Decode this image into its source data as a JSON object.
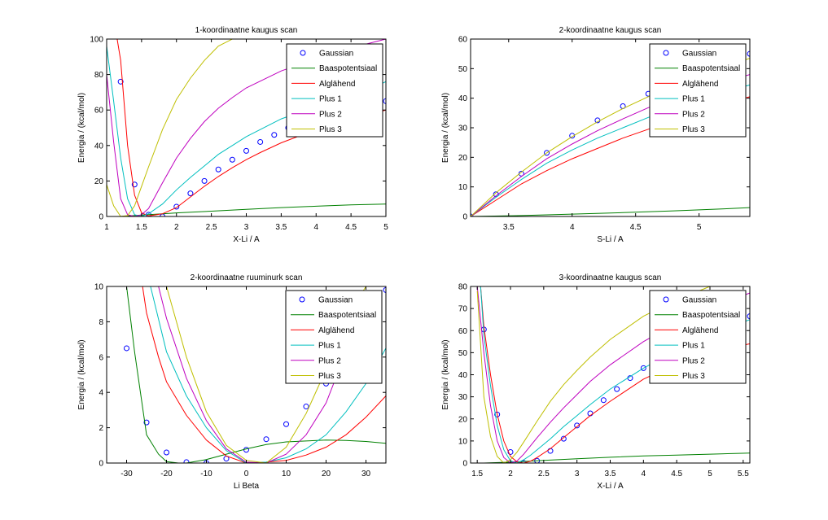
{
  "colors": {
    "Gaussian": "#0000ff",
    "Baaspotentsiaal": "#008000",
    "Alglähend": "#ff0000",
    "Plus 1": "#00bfbf",
    "Plus 2": "#bf00bf",
    "Plus 3": "#bfbf00"
  },
  "chart_data": [
    {
      "type": "line",
      "title": "1-koordinaatne kaugus scan",
      "xlabel": "X-Li / A",
      "ylabel": "Energia / (kcal/mol)",
      "xlim": [
        1,
        5
      ],
      "ylim": [
        0,
        100
      ],
      "xticks": [
        1,
        1.5,
        2,
        2.5,
        3,
        3.5,
        4,
        4.5,
        5
      ],
      "yticks": [
        0,
        20,
        40,
        60,
        80,
        100
      ],
      "legend": [
        "Gaussian",
        "Baaspotentsiaal",
        "Alglähend",
        "Plus 1",
        "Plus 2",
        "Plus 3"
      ],
      "legend_position": "top-right",
      "series": [
        {
          "name": "Gaussian",
          "marker": "circle",
          "x": [
            1.2,
            1.4,
            1.6,
            1.8,
            2.0,
            2.2,
            2.4,
            2.6,
            2.8,
            3.0,
            3.2,
            3.4,
            3.6,
            3.8,
            4.0,
            4.2,
            4.4,
            4.6,
            4.8,
            5.0
          ],
          "y": [
            76,
            18,
            1,
            0,
            5.5,
            13,
            20,
            26.5,
            32,
            37,
            42,
            46,
            50,
            53,
            55.5,
            58,
            60,
            62,
            63.5,
            65
          ]
        },
        {
          "name": "Baaspotentsiaal",
          "x": [
            1.2,
            1.4,
            1.6,
            1.8,
            2.0,
            2.5,
            3.0,
            3.5,
            4.0,
            4.5,
            5.0
          ],
          "y": [
            0,
            0.5,
            1,
            1.5,
            2,
            3,
            4,
            5,
            5.8,
            6.5,
            7
          ]
        },
        {
          "name": "Alglähend",
          "x": [
            1.15,
            1.2,
            1.3,
            1.4,
            1.5,
            1.6,
            1.8,
            2.0,
            2.2,
            2.4,
            2.6,
            2.8,
            3.0,
            3.2,
            3.5,
            4.0,
            4.5,
            5.0
          ],
          "y": [
            100,
            88,
            40,
            12,
            2,
            0.3,
            1.5,
            5,
            11,
            17,
            22.5,
            27.5,
            32,
            36,
            41.5,
            49,
            54.5,
            60
          ]
        },
        {
          "name": "Plus 1",
          "x": [
            1.0,
            1.1,
            1.2,
            1.3,
            1.4,
            1.5,
            1.6,
            1.8,
            2.0,
            2.2,
            2.4,
            2.6,
            2.8,
            3.0,
            3.5,
            4.0,
            4.5,
            5.0
          ],
          "y": [
            96,
            65,
            33,
            10,
            1,
            0,
            1.5,
            7,
            15,
            22,
            28.5,
            35,
            40,
            45,
            55,
            62,
            67,
            76
          ]
        },
        {
          "name": "Plus 2",
          "x": [
            1.0,
            1.1,
            1.2,
            1.3,
            1.4,
            1.5,
            1.6,
            1.8,
            2.0,
            2.2,
            2.4,
            2.6,
            2.8,
            3.0,
            3.5,
            4.0,
            4.5,
            5.0
          ],
          "y": [
            80,
            42,
            10,
            1,
            0,
            1,
            4.5,
            19,
            33,
            44,
            53.5,
            61,
            67,
            72.5,
            82,
            89,
            95,
            100
          ]
        },
        {
          "name": "Plus 3",
          "x": [
            1.0,
            1.1,
            1.2,
            1.3,
            1.4,
            1.5,
            1.6,
            1.8,
            2.0,
            2.2,
            2.4,
            2.6,
            2.8,
            3.0
          ],
          "y": [
            18,
            6,
            0,
            0.5,
            6,
            17,
            28,
            49,
            66,
            78,
            88,
            96,
            100,
            105
          ]
        }
      ]
    },
    {
      "type": "line",
      "title": "2-koordinaatne kaugus scan",
      "xlabel": "S-Li / A",
      "ylabel": "Energia / (kcal/mol)",
      "xlim": [
        3.2,
        5.4
      ],
      "ylim": [
        0,
        60
      ],
      "xticks": [
        3.5,
        4,
        4.5,
        5
      ],
      "yticks": [
        0,
        10,
        20,
        30,
        40,
        50,
        60
      ],
      "legend": [
        "Gaussian",
        "Baaspotentsiaal",
        "Alglähend",
        "Plus 1",
        "Plus 2",
        "Plus 3"
      ],
      "legend_position": "top-right",
      "series": [
        {
          "name": "Gaussian",
          "marker": "circle",
          "x": [
            3.2,
            3.4,
            3.6,
            3.8,
            4.0,
            4.2,
            4.4,
            4.6,
            4.8,
            5.0,
            5.2,
            5.4
          ],
          "y": [
            0,
            7.5,
            14.5,
            21.5,
            27.3,
            32.5,
            37.3,
            41.5,
            45.5,
            49,
            52,
            55
          ]
        },
        {
          "name": "Baaspotentsiaal",
          "x": [
            3.2,
            3.6,
            4.0,
            4.4,
            4.8,
            5.2,
            5.4
          ],
          "y": [
            0,
            0.3,
            0.8,
            1.3,
            1.9,
            2.6,
            3.0
          ]
        },
        {
          "name": "Alglähend",
          "x": [
            3.2,
            3.4,
            3.6,
            3.8,
            4.0,
            4.2,
            4.4,
            4.6,
            4.8,
            5.0,
            5.2,
            5.4
          ],
          "y": [
            0,
            5.5,
            11,
            15.5,
            19.5,
            23,
            26.5,
            29.5,
            32.5,
            35.5,
            38,
            40.5
          ]
        },
        {
          "name": "Plus 1",
          "x": [
            3.2,
            3.4,
            3.6,
            3.8,
            4.0,
            4.2,
            4.4,
            4.6,
            4.8,
            5.0,
            5.2,
            5.4
          ],
          "y": [
            0,
            6.5,
            12.5,
            18,
            22.5,
            26.5,
            30,
            33.5,
            36.5,
            39.5,
            42,
            44.5
          ]
        },
        {
          "name": "Plus 2",
          "x": [
            3.2,
            3.4,
            3.6,
            3.8,
            4.0,
            4.2,
            4.4,
            4.6,
            4.8,
            5.0,
            5.2,
            5.4
          ],
          "y": [
            0,
            7,
            13.5,
            19.5,
            24.5,
            29,
            33,
            36.8,
            40,
            43,
            45.5,
            48
          ]
        },
        {
          "name": "Plus 3",
          "x": [
            3.2,
            3.4,
            3.6,
            3.8,
            4.0,
            4.2,
            4.4,
            4.6,
            4.8,
            5.0,
            5.2,
            5.4
          ],
          "y": [
            0,
            8,
            15,
            21.5,
            27,
            32,
            36.5,
            40.5,
            44,
            47.5,
            50.5,
            53.5
          ]
        }
      ]
    },
    {
      "type": "line",
      "title": "2-koordinaatne ruuminurk scan",
      "xlabel": "Li Beta",
      "ylabel": "Energia / (kcal/mol)",
      "xlim": [
        -35,
        35
      ],
      "ylim": [
        0,
        10
      ],
      "xticks": [
        -30,
        -20,
        -10,
        0,
        10,
        20,
        30
      ],
      "yticks": [
        0,
        2,
        4,
        6,
        8,
        10
      ],
      "legend": [
        "Gaussian",
        "Baaspotentsiaal",
        "Alglähend",
        "Plus 1",
        "Plus 2",
        "Plus 3"
      ],
      "legend_position": "top-right",
      "series": [
        {
          "name": "Gaussian",
          "marker": "circle",
          "x": [
            -30,
            -25,
            -20,
            -15,
            -10,
            -5,
            0,
            5,
            10,
            15,
            20,
            25,
            30,
            35
          ],
          "y": [
            6.5,
            2.3,
            0.6,
            0.05,
            0,
            0.25,
            0.75,
            1.35,
            2.2,
            3.2,
            4.5,
            6.2,
            8,
            9.8
          ]
        },
        {
          "name": "Baaspotentsiaal",
          "x": [
            -30,
            -28,
            -25,
            -22,
            -20,
            -17,
            -15,
            -10,
            -5,
            0,
            5,
            10,
            15,
            20,
            25,
            30,
            35
          ],
          "y": [
            10,
            6.3,
            1.6,
            0.5,
            0.08,
            0,
            0,
            0.2,
            0.5,
            0.8,
            1.05,
            1.2,
            1.25,
            1.3,
            1.28,
            1.22,
            1.12
          ]
        },
        {
          "name": "Alglähend",
          "x": [
            -26,
            -25,
            -22,
            -20,
            -15,
            -10,
            -5,
            0,
            5,
            10,
            15,
            20,
            25,
            30,
            35
          ],
          "y": [
            10,
            8.5,
            6,
            4.6,
            2.7,
            1.3,
            0.4,
            0,
            0.05,
            0.15,
            0.45,
            0.9,
            1.6,
            2.6,
            3.8
          ]
        },
        {
          "name": "Plus 1",
          "x": [
            -24,
            -20,
            -15,
            -10,
            -5,
            0,
            5,
            10,
            15,
            20,
            25,
            30,
            35
          ],
          "y": [
            10,
            6.3,
            3.8,
            2,
            0.7,
            0,
            0.05,
            0.3,
            0.8,
            1.6,
            2.9,
            4.5,
            6.5
          ]
        },
        {
          "name": "Plus 2",
          "x": [
            -22,
            -20,
            -15,
            -10,
            -5,
            0,
            5,
            10,
            15,
            20,
            25,
            28
          ],
          "y": [
            10,
            8.2,
            4.8,
            2.4,
            0.8,
            0.05,
            0,
            0.5,
            1.6,
            3.4,
            6.3,
            8.2
          ]
        },
        {
          "name": "Plus 3",
          "x": [
            -20,
            -15,
            -10,
            -5,
            0,
            5,
            10,
            15,
            20,
            25,
            30
          ],
          "y": [
            10,
            6,
            2.9,
            1,
            0.15,
            0,
            0.9,
            2.8,
            5.3,
            8.2,
            10
          ]
        }
      ]
    },
    {
      "type": "line",
      "title": "3-koordinaatne kaugus scan",
      "xlabel": "X-Li / A",
      "ylabel": "Energia / (kcal/mol)",
      "xlim": [
        1.4,
        5.6
      ],
      "ylim": [
        0,
        80
      ],
      "xticks": [
        1.5,
        2,
        2.5,
        3,
        3.5,
        4,
        4.5,
        5,
        5.5
      ],
      "yticks": [
        0,
        10,
        20,
        30,
        40,
        50,
        60,
        70,
        80
      ],
      "legend": [
        "Gaussian",
        "Baaspotentsiaal",
        "Alglähend",
        "Plus 1",
        "Plus 2",
        "Plus 3"
      ],
      "legend_position": "top-right",
      "series": [
        {
          "name": "Gaussian",
          "marker": "circle",
          "x": [
            1.6,
            1.8,
            2.0,
            2.2,
            2.4,
            2.6,
            2.8,
            3.0,
            3.2,
            3.4,
            3.6,
            3.8,
            4.0,
            4.2,
            4.4,
            4.6,
            4.8,
            5.0,
            5.2,
            5.4,
            5.6
          ],
          "y": [
            60.5,
            22,
            5,
            0,
            1,
            5.5,
            11,
            17,
            22.5,
            28.5,
            33.5,
            38.5,
            43,
            47,
            51,
            54.5,
            57.5,
            60.5,
            63,
            65,
            66.5
          ]
        },
        {
          "name": "Baaspotentsiaal",
          "x": [
            1.6,
            2.0,
            2.5,
            3.0,
            3.5,
            4.0,
            4.5,
            5.0,
            5.6
          ],
          "y": [
            0,
            0.4,
            1.2,
            1.9,
            2.6,
            3.2,
            3.6,
            4.0,
            4.5
          ]
        },
        {
          "name": "Alglähend",
          "x": [
            1.55,
            1.6,
            1.7,
            1.8,
            1.9,
            2.0,
            2.1,
            2.2,
            2.3,
            2.4,
            2.6,
            2.8,
            3.0,
            3.2,
            3.5,
            4.0,
            4.5,
            5.0,
            5.6
          ],
          "y": [
            80,
            62,
            40,
            22,
            10,
            3,
            0.5,
            0,
            0.8,
            2.5,
            6.5,
            11.5,
            16.5,
            21.5,
            28,
            38,
            45,
            50.5,
            54
          ]
        },
        {
          "name": "Plus 1",
          "x": [
            1.55,
            1.6,
            1.7,
            1.8,
            1.9,
            2.0,
            2.1,
            2.2,
            2.3,
            2.4,
            2.6,
            2.8,
            3.0,
            3.2,
            3.5,
            4.0,
            4.5,
            5.0,
            5.6
          ],
          "y": [
            80,
            58,
            35,
            17,
            6,
            1,
            0,
            1.5,
            3.5,
            6,
            11,
            16.5,
            21.5,
            26.5,
            33.5,
            43,
            51,
            58,
            65
          ]
        },
        {
          "name": "Plus 2",
          "x": [
            1.5,
            1.6,
            1.7,
            1.8,
            1.9,
            2.0,
            2.1,
            2.2,
            2.4,
            2.6,
            2.8,
            3.0,
            3.2,
            3.5,
            4.0,
            4.5,
            5.0,
            5.6
          ],
          "y": [
            80,
            50,
            26,
            10,
            2.5,
            0,
            1,
            4,
            11.5,
            18.5,
            25,
            31,
            37,
            44.5,
            55,
            63.5,
            70.5,
            77
          ]
        },
        {
          "name": "Plus 3",
          "x": [
            1.5,
            1.6,
            1.7,
            1.8,
            1.9,
            2.0,
            2.1,
            2.2,
            2.4,
            2.6,
            2.8,
            3.0,
            3.2,
            3.5,
            4.0,
            4.5,
            5.0,
            5.2
          ],
          "y": [
            78,
            30,
            12,
            3,
            0,
            1.5,
            5,
            9.5,
            19,
            28,
            35.5,
            42,
            48,
            56,
            66.5,
            74,
            80,
            82
          ]
        }
      ]
    }
  ]
}
